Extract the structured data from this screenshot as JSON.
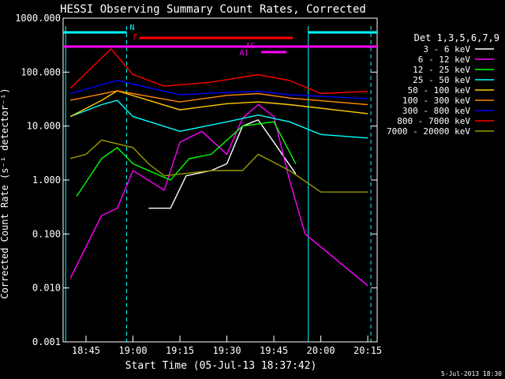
{
  "chart_data": {
    "type": "line",
    "title": "HESSI Observing Summary Count Rates, Corrected",
    "xlabel": "Start Time (05-Jul-13 18:37:42)",
    "ylabel": "Corrected Count Rate (s⁻¹ detector⁻¹)",
    "y_scale": "log",
    "ylim": [
      0.001,
      1000
    ],
    "xlim": [
      "18:37:42",
      "20:18:00"
    ],
    "x_ticks": [
      "18:45",
      "19:00",
      "19:15",
      "19:30",
      "19:45",
      "20:00",
      "20:15"
    ],
    "y_ticks": [
      "1000.000",
      "100.000",
      "10.000",
      "1.000",
      "0.100",
      "0.010",
      "0.001"
    ],
    "timestamp": "5-Jul-2013 18:30",
    "legend_title": "Det 1,3,5,6,7,9",
    "legend_position": "right",
    "series": [
      {
        "name": "3 - 6 keV",
        "color": "#ffffff",
        "points": [
          [
            "19:05",
            0.3
          ],
          [
            "19:12",
            0.3
          ],
          [
            "19:17",
            1.2
          ],
          [
            "19:25",
            1.5
          ],
          [
            "19:30",
            2
          ],
          [
            "19:35",
            10
          ],
          [
            "19:40",
            13
          ],
          [
            "19:45",
            5
          ],
          [
            "19:52",
            1.3
          ]
        ]
      },
      {
        "name": "6 - 12 keV",
        "color": "#ff00ff",
        "points": [
          [
            "18:40",
            0.015
          ],
          [
            "18:50",
            0.22
          ],
          [
            "18:55",
            0.3
          ],
          [
            "19:00",
            1.5
          ],
          [
            "19:10",
            0.65
          ],
          [
            "19:15",
            5
          ],
          [
            "19:22",
            8
          ],
          [
            "19:30",
            3
          ],
          [
            "19:35",
            14
          ],
          [
            "19:40",
            25
          ],
          [
            "19:45",
            15
          ],
          [
            "19:50",
            1
          ],
          [
            "19:55",
            0.1
          ],
          [
            "20:15",
            0.011
          ]
        ]
      },
      {
        "name": "12 - 25 keV",
        "color": "#00ff00",
        "points": [
          [
            "18:42",
            0.5
          ],
          [
            "18:50",
            2.5
          ],
          [
            "18:55",
            4
          ],
          [
            "19:00",
            2
          ],
          [
            "19:12",
            1
          ],
          [
            "19:18",
            2.5
          ],
          [
            "19:25",
            3
          ],
          [
            "19:35",
            10
          ],
          [
            "19:45",
            12
          ],
          [
            "19:52",
            2
          ]
        ]
      },
      {
        "name": "25 - 50 keV",
        "color": "#00ffff",
        "points": [
          [
            "18:40",
            15
          ],
          [
            "18:50",
            25
          ],
          [
            "18:55",
            30
          ],
          [
            "19:00",
            15
          ],
          [
            "19:15",
            8
          ],
          [
            "19:30",
            12
          ],
          [
            "19:40",
            16
          ],
          [
            "19:50",
            12
          ],
          [
            "20:00",
            7
          ],
          [
            "20:15",
            6
          ]
        ]
      },
      {
        "name": "50 - 100 keV",
        "color": "#ffcc00",
        "points": [
          [
            "18:40",
            15
          ],
          [
            "18:50",
            30
          ],
          [
            "18:55",
            45
          ],
          [
            "19:15",
            20
          ],
          [
            "19:30",
            26
          ],
          [
            "19:40",
            28
          ],
          [
            "19:50",
            25
          ],
          [
            "20:15",
            17
          ]
        ]
      },
      {
        "name": "100 - 300 keV",
        "color": "#ff8800",
        "points": [
          [
            "18:40",
            30
          ],
          [
            "18:55",
            45
          ],
          [
            "19:15",
            28
          ],
          [
            "19:30",
            37
          ],
          [
            "19:40",
            40
          ],
          [
            "19:50",
            33
          ],
          [
            "20:15",
            25
          ]
        ]
      },
      {
        "name": "300 - 800 keV",
        "color": "#0000ff",
        "points": [
          [
            "18:40",
            40
          ],
          [
            "18:55",
            70
          ],
          [
            "19:15",
            38
          ],
          [
            "19:30",
            42
          ],
          [
            "19:40",
            44
          ],
          [
            "19:50",
            38
          ],
          [
            "20:15",
            32
          ]
        ]
      },
      {
        "name": "800 - 7000 keV",
        "color": "#ff0000",
        "points": [
          [
            "18:40",
            50
          ],
          [
            "18:53",
            270
          ],
          [
            "19:00",
            90
          ],
          [
            "19:10",
            55
          ],
          [
            "19:25",
            65
          ],
          [
            "19:40",
            90
          ],
          [
            "19:50",
            70
          ],
          [
            "20:00",
            40
          ],
          [
            "20:15",
            44
          ]
        ]
      },
      {
        "name": "7000 - 20000 keV",
        "color": "#999900",
        "points": [
          [
            "18:40",
            2.5
          ],
          [
            "18:45",
            3
          ],
          [
            "18:50",
            5.5
          ],
          [
            "19:00",
            4
          ],
          [
            "19:05",
            2
          ],
          [
            "19:10",
            1.2
          ],
          [
            "19:25",
            1.5
          ],
          [
            "19:35",
            1.5
          ],
          [
            "19:40",
            3
          ],
          [
            "19:50",
            1.5
          ],
          [
            "20:00",
            0.6
          ],
          [
            "20:15",
            0.6
          ]
        ]
      }
    ],
    "annotations": [
      {
        "label": "N",
        "color": "#00ffff"
      },
      {
        "label": "F",
        "color": "#ff0000"
      },
      {
        "label": "AG",
        "color": "#ff00ff"
      },
      {
        "label": "A1",
        "color": "#ff00ff"
      }
    ]
  }
}
